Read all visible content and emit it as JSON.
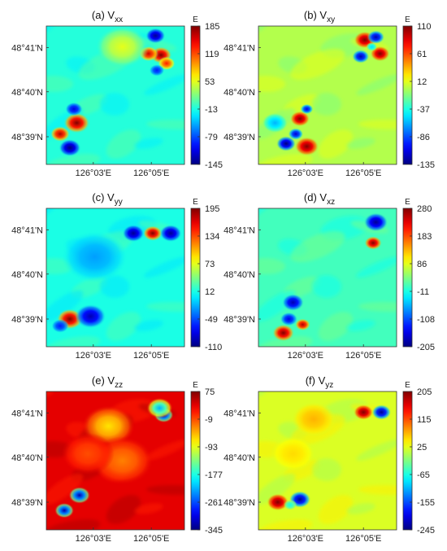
{
  "chart_data": [
    {
      "type": "heatmap",
      "panel_label": "(a) V",
      "component": "xx",
      "colorbar_unit": "E",
      "colorbar_ticks": [
        185,
        119,
        53,
        -13,
        -79,
        -145
      ],
      "range": [
        -145,
        185
      ],
      "background": 0.41,
      "anomalies": [
        {
          "cx": 0.83,
          "cy": 0.21,
          "v": 1.0,
          "r": 0.05
        },
        {
          "cx": 0.74,
          "cy": 0.2,
          "v": 0.92,
          "r": 0.045
        },
        {
          "cx": 0.87,
          "cy": 0.27,
          "v": 0.85,
          "r": 0.04
        },
        {
          "cx": 0.79,
          "cy": 0.07,
          "v": 0.02,
          "r": 0.045
        },
        {
          "cx": 0.8,
          "cy": 0.32,
          "v": 0.15,
          "r": 0.035
        },
        {
          "cx": 0.22,
          "cy": 0.7,
          "v": 1.0,
          "r": 0.06
        },
        {
          "cx": 0.1,
          "cy": 0.78,
          "v": 0.95,
          "r": 0.045
        },
        {
          "cx": 0.2,
          "cy": 0.6,
          "v": 0.1,
          "r": 0.04
        },
        {
          "cx": 0.17,
          "cy": 0.88,
          "v": 0.0,
          "r": 0.05
        },
        {
          "cx": 0.55,
          "cy": 0.15,
          "v": 0.6,
          "r": 0.12
        }
      ]
    },
    {
      "type": "heatmap",
      "panel_label": "(b) V",
      "component": "xy",
      "colorbar_unit": "E",
      "colorbar_ticks": [
        110,
        61,
        12,
        -37,
        -86,
        -135
      ],
      "range": [
        -135,
        110
      ],
      "background": 0.55,
      "anomalies": [
        {
          "cx": 0.77,
          "cy": 0.1,
          "v": 1.0,
          "r": 0.05
        },
        {
          "cx": 0.88,
          "cy": 0.2,
          "v": 1.0,
          "r": 0.045
        },
        {
          "cx": 0.85,
          "cy": 0.08,
          "v": 0.05,
          "r": 0.04
        },
        {
          "cx": 0.74,
          "cy": 0.22,
          "v": 0.05,
          "r": 0.04
        },
        {
          "cx": 0.82,
          "cy": 0.15,
          "v": 0.35,
          "r": 0.025
        },
        {
          "cx": 0.3,
          "cy": 0.67,
          "v": 1.0,
          "r": 0.045
        },
        {
          "cx": 0.35,
          "cy": 0.87,
          "v": 1.0,
          "r": 0.055
        },
        {
          "cx": 0.2,
          "cy": 0.85,
          "v": 0.0,
          "r": 0.045
        },
        {
          "cx": 0.35,
          "cy": 0.6,
          "v": 0.1,
          "r": 0.03
        },
        {
          "cx": 0.27,
          "cy": 0.78,
          "v": 0.08,
          "r": 0.035
        },
        {
          "cx": 0.12,
          "cy": 0.7,
          "v": 0.3,
          "r": 0.06
        }
      ]
    },
    {
      "type": "heatmap",
      "panel_label": "(c) V",
      "component": "yy",
      "colorbar_unit": "E",
      "colorbar_ticks": [
        195,
        134,
        73,
        12,
        -49,
        -110
      ],
      "range": [
        -110,
        195
      ],
      "background": 0.4,
      "anomalies": [
        {
          "cx": 0.77,
          "cy": 0.18,
          "v": 1.0,
          "r": 0.045
        },
        {
          "cx": 0.63,
          "cy": 0.18,
          "v": 0.02,
          "r": 0.05
        },
        {
          "cx": 0.9,
          "cy": 0.18,
          "v": 0.02,
          "r": 0.05
        },
        {
          "cx": 0.17,
          "cy": 0.8,
          "v": 1.0,
          "r": 0.06
        },
        {
          "cx": 0.32,
          "cy": 0.78,
          "v": 0.05,
          "r": 0.07
        },
        {
          "cx": 0.1,
          "cy": 0.85,
          "v": 0.15,
          "r": 0.04
        },
        {
          "cx": 0.35,
          "cy": 0.35,
          "v": 0.28,
          "r": 0.15
        }
      ]
    },
    {
      "type": "heatmap",
      "panel_label": "(d) V",
      "component": "xz",
      "colorbar_unit": "E",
      "colorbar_ticks": [
        280,
        183,
        86,
        -11,
        -108,
        -205
      ],
      "range": [
        -205,
        280
      ],
      "background": 0.44,
      "anomalies": [
        {
          "cx": 0.85,
          "cy": 0.1,
          "v": 0.02,
          "r": 0.055
        },
        {
          "cx": 0.83,
          "cy": 0.25,
          "v": 1.0,
          "r": 0.04
        },
        {
          "cx": 0.25,
          "cy": 0.68,
          "v": 0.05,
          "r": 0.05
        },
        {
          "cx": 0.18,
          "cy": 0.9,
          "v": 1.0,
          "r": 0.05
        },
        {
          "cx": 0.32,
          "cy": 0.84,
          "v": 0.95,
          "r": 0.035
        },
        {
          "cx": 0.22,
          "cy": 0.8,
          "v": 0.1,
          "r": 0.04
        }
      ]
    },
    {
      "type": "heatmap",
      "panel_label": "(e) V",
      "component": "zz",
      "colorbar_unit": "E",
      "colorbar_ticks": [
        75,
        -9,
        -93,
        -177,
        -261,
        -345
      ],
      "range": [
        -345,
        75
      ],
      "background": 0.9,
      "anomalies": [
        {
          "cx": 0.85,
          "cy": 0.17,
          "v": 0.05,
          "r": 0.045
        },
        {
          "cx": 0.82,
          "cy": 0.12,
          "v": 0.3,
          "r": 0.06
        },
        {
          "cx": 0.24,
          "cy": 0.75,
          "v": 0.05,
          "r": 0.05
        },
        {
          "cx": 0.13,
          "cy": 0.86,
          "v": 0.05,
          "r": 0.045
        },
        {
          "cx": 0.45,
          "cy": 0.25,
          "v": 0.65,
          "r": 0.12
        },
        {
          "cx": 0.55,
          "cy": 0.5,
          "v": 0.75,
          "r": 0.14
        },
        {
          "cx": 0.3,
          "cy": 0.45,
          "v": 0.8,
          "r": 0.12
        }
      ]
    },
    {
      "type": "heatmap",
      "panel_label": "(f) V",
      "component": "yz",
      "colorbar_unit": "E",
      "colorbar_ticks": [
        205,
        115,
        25,
        -65,
        -155,
        -245
      ],
      "range": [
        -245,
        205
      ],
      "background": 0.59,
      "anomalies": [
        {
          "cx": 0.76,
          "cy": 0.15,
          "v": 1.0,
          "r": 0.045
        },
        {
          "cx": 0.89,
          "cy": 0.15,
          "v": 0.02,
          "r": 0.045
        },
        {
          "cx": 0.14,
          "cy": 0.8,
          "v": 1.0,
          "r": 0.05
        },
        {
          "cx": 0.3,
          "cy": 0.78,
          "v": 0.02,
          "r": 0.05
        },
        {
          "cx": 0.23,
          "cy": 0.82,
          "v": 0.4,
          "r": 0.03
        },
        {
          "cx": 0.4,
          "cy": 0.2,
          "v": 0.7,
          "r": 0.1
        },
        {
          "cx": 0.25,
          "cy": 0.45,
          "v": 0.66,
          "r": 0.1
        }
      ]
    }
  ],
  "axes": {
    "y_ticks": [
      "48°41'N",
      "48°40'N",
      "48°39'N"
    ],
    "x_ticks": [
      "126°03'E",
      "126°05'E"
    ],
    "colormap": "jet",
    "grid": false
  }
}
